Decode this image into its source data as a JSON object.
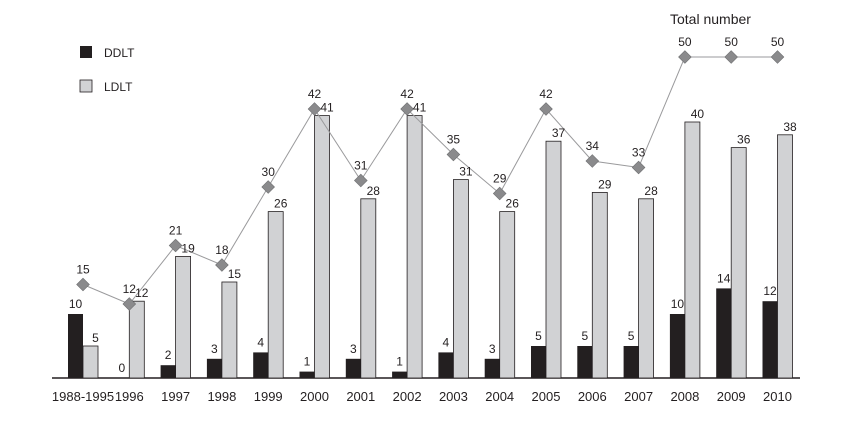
{
  "chart_data": {
    "type": "bar",
    "title": "",
    "xlabel": "",
    "ylabel": "",
    "categories": [
      "1988-1995",
      "1996",
      "1997",
      "1998",
      "1999",
      "2000",
      "2001",
      "2002",
      "2003",
      "2004",
      "2005",
      "2006",
      "2007",
      "2008",
      "2009",
      "2010"
    ],
    "series": [
      {
        "name": "DDLT",
        "type": "bar",
        "color": "#231f20",
        "values": [
          10,
          0,
          2,
          3,
          4,
          1,
          3,
          1,
          4,
          3,
          5,
          5,
          5,
          10,
          14,
          12
        ]
      },
      {
        "name": "LDLT",
        "type": "bar",
        "color": "#d1d2d4",
        "values": [
          5,
          12,
          19,
          15,
          26,
          41,
          28,
          41,
          31,
          26,
          37,
          29,
          28,
          40,
          36,
          38
        ]
      },
      {
        "name": "Total number",
        "type": "line",
        "color": "#8a8a8c",
        "values": [
          15,
          12,
          21,
          18,
          30,
          42,
          31,
          42,
          35,
          29,
          42,
          34,
          33,
          50,
          50,
          50
        ]
      }
    ],
    "ylim": [
      0,
      52
    ],
    "grid": false,
    "legend": "top-left",
    "annotations": [
      "Total number"
    ]
  }
}
